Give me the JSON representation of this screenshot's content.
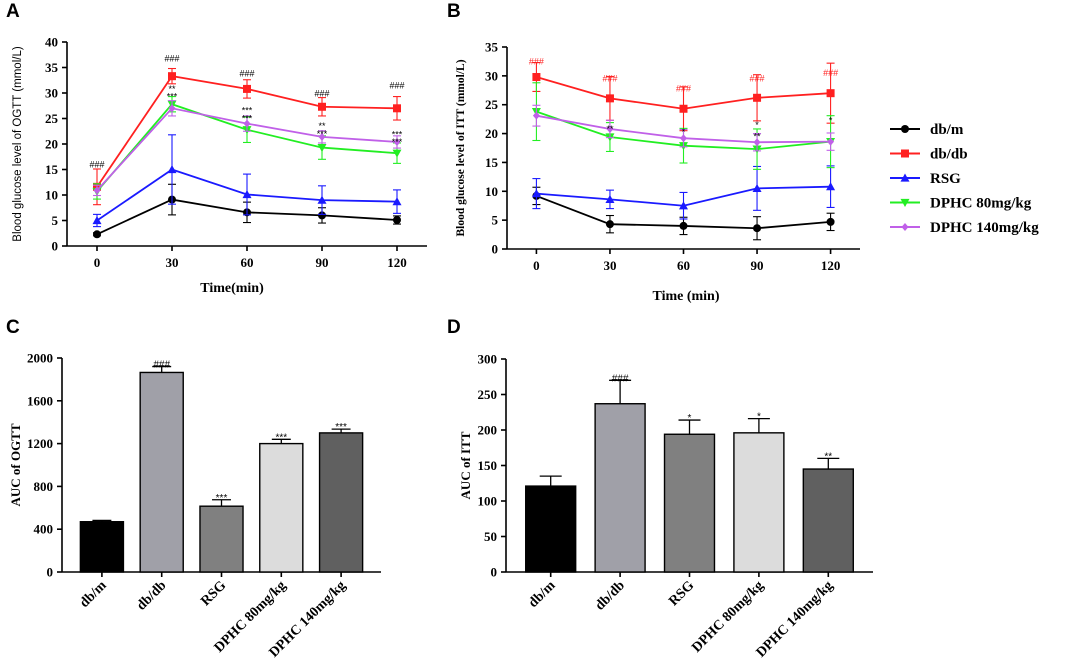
{
  "legend": [
    {
      "label": "db/m",
      "color": "#000000",
      "marker": "circle"
    },
    {
      "label": "db/db",
      "color": "#ff2020",
      "marker": "square"
    },
    {
      "label": "RSG",
      "color": "#1a1aff",
      "marker": "triangle-up"
    },
    {
      "label": "DPHC 80mg/kg",
      "color": "#22ee22",
      "marker": "triangle-down"
    },
    {
      "label": "DPHC 140mg/kg",
      "color": "#c060e8",
      "marker": "diamond"
    }
  ],
  "chart_data": [
    {
      "id": "A",
      "letter": "A",
      "type": "line",
      "xlabel": "Time(min)",
      "ylabel": "Blood glucose level of OGTT (mmol/L)",
      "x": [
        0,
        30,
        60,
        90,
        120
      ],
      "xlim": [
        -12,
        132
      ],
      "ylim": [
        0,
        40
      ],
      "yticks": [
        0,
        5,
        10,
        15,
        20,
        25,
        30,
        35,
        40
      ],
      "series": [
        {
          "name": "db/m",
          "values": [
            2.3,
            9.1,
            6.6,
            6.0,
            5.1
          ],
          "err": [
            0.3,
            3.0,
            2.0,
            1.5,
            0.8
          ]
        },
        {
          "name": "db/db",
          "values": [
            11.6,
            33.3,
            30.8,
            27.3,
            27.0
          ],
          "err": [
            3.5,
            1.5,
            1.8,
            1.8,
            2.3
          ]
        },
        {
          "name": "RSG",
          "values": [
            5.0,
            15.0,
            10.1,
            9.0,
            8.7
          ],
          "err": [
            1.2,
            6.8,
            4.0,
            2.8,
            2.3
          ]
        },
        {
          "name": "DPHC 80mg/kg",
          "values": [
            10.7,
            27.8,
            22.8,
            19.3,
            18.2
          ],
          "err": [
            1.5,
            1.5,
            2.5,
            2.3,
            2.0
          ]
        },
        {
          "name": "DPHC 140mg/kg",
          "values": [
            10.9,
            27.0,
            24.0,
            21.4,
            20.4
          ],
          "err": [
            1.0,
            1.5,
            1.5,
            1.2,
            1.2
          ]
        }
      ],
      "annotations": [
        {
          "x": 0,
          "y": 16.0,
          "text": "###",
          "color": "#000000"
        },
        {
          "x": 30,
          "y": 36.8,
          "text": "###",
          "color": "#000000"
        },
        {
          "x": 30,
          "y": 30.8,
          "text": "**",
          "color": "#000000"
        },
        {
          "x": 30,
          "y": 29.3,
          "text": "***",
          "color": "#000000"
        },
        {
          "x": 60,
          "y": 33.8,
          "text": "###",
          "color": "#000000"
        },
        {
          "x": 60,
          "y": 26.6,
          "text": "***",
          "color": "#000000"
        },
        {
          "x": 60,
          "y": 25.0,
          "text": "***",
          "color": "#000000"
        },
        {
          "x": 90,
          "y": 29.9,
          "text": "###",
          "color": "#000000"
        },
        {
          "x": 90,
          "y": 23.5,
          "text": "**",
          "color": "#000000"
        },
        {
          "x": 90,
          "y": 22.0,
          "text": "***",
          "color": "#000000"
        },
        {
          "x": 120,
          "y": 31.5,
          "text": "###",
          "color": "#000000"
        },
        {
          "x": 120,
          "y": 21.9,
          "text": "***",
          "color": "#000000"
        },
        {
          "x": 120,
          "y": 20.4,
          "text": "***",
          "color": "#000000"
        }
      ]
    },
    {
      "id": "B",
      "letter": "B",
      "type": "line",
      "xlabel": "Time (min)",
      "ylabel": "Blood glucose level of ITT (mmol/L)",
      "x": [
        0,
        30,
        60,
        90,
        120
      ],
      "xlim": [
        -12,
        132
      ],
      "ylim": [
        0,
        35
      ],
      "yticks": [
        0,
        5,
        10,
        15,
        20,
        25,
        30,
        35
      ],
      "series": [
        {
          "name": "db/m",
          "values": [
            9.2,
            4.3,
            4.0,
            3.6,
            4.7
          ],
          "err": [
            1.5,
            1.5,
            1.5,
            2.0,
            1.5
          ]
        },
        {
          "name": "db/db",
          "values": [
            29.8,
            26.1,
            24.3,
            26.2,
            27.0
          ],
          "err": [
            2.5,
            3.8,
            3.8,
            4.0,
            5.2
          ]
        },
        {
          "name": "RSG",
          "values": [
            9.6,
            8.6,
            7.5,
            10.5,
            10.8
          ],
          "err": [
            2.6,
            1.6,
            2.3,
            3.8,
            3.6
          ]
        },
        {
          "name": "DPHC 80mg/kg",
          "values": [
            23.8,
            19.4,
            17.9,
            17.3,
            18.6
          ],
          "err": [
            5.0,
            2.5,
            3.0,
            3.5,
            4.5
          ]
        },
        {
          "name": "DPHC 140mg/kg",
          "values": [
            23.1,
            20.8,
            19.2,
            18.5,
            18.6
          ],
          "err": [
            1.8,
            1.5,
            1.5,
            1.5,
            1.5
          ]
        }
      ],
      "annotations": [
        {
          "x": 0,
          "y": 32.5,
          "text": "###",
          "color": "#ff2020"
        },
        {
          "x": 30,
          "y": 29.5,
          "text": "###",
          "color": "#ff2020"
        },
        {
          "x": 60,
          "y": 27.8,
          "text": "###",
          "color": "#ff2020"
        },
        {
          "x": 90,
          "y": 29.5,
          "text": "###",
          "color": "#ff2020"
        },
        {
          "x": 120,
          "y": 30.5,
          "text": "###",
          "color": "#ff2020"
        },
        {
          "x": 30,
          "y": 20.8,
          "text": "**",
          "color": "#000000"
        },
        {
          "x": 60,
          "y": 20.3,
          "text": "*",
          "color": "#000000"
        },
        {
          "x": 90,
          "y": 21.5,
          "text": "*",
          "color": "#000000"
        },
        {
          "x": 90,
          "y": 19.5,
          "text": "**",
          "color": "#000000"
        },
        {
          "x": 120,
          "y": 22.3,
          "text": "*",
          "color": "#000000"
        }
      ]
    },
    {
      "id": "C",
      "letter": "C",
      "type": "bar",
      "xlabel": "",
      "ylabel": "AUC of OGTT",
      "categories": [
        "db/m",
        "db/db",
        "RSG",
        "DPHC 80mg/kg",
        "DPHC 140mg/kg"
      ],
      "values": [
        470,
        1865,
        615,
        1200,
        1300
      ],
      "err": [
        12,
        55,
        60,
        40,
        35
      ],
      "colors": [
        "#000000",
        "#a0a0a8",
        "#808080",
        "#dcdcdc",
        "#606060"
      ],
      "sig": [
        "",
        "###",
        "***",
        "***",
        "***"
      ],
      "ylim": [
        0,
        2000
      ],
      "yticks": [
        0,
        400,
        800,
        1200,
        1600,
        2000
      ]
    },
    {
      "id": "D",
      "letter": "D",
      "type": "bar",
      "xlabel": "",
      "ylabel": "AUC of ITT",
      "categories": [
        "db/m",
        "db/db",
        "RSG",
        "DPHC 80mg/kg",
        "DPHC 140mg/kg"
      ],
      "values": [
        121,
        237,
        194,
        196,
        145
      ],
      "err": [
        14,
        33,
        20,
        20,
        15
      ],
      "colors": [
        "#000000",
        "#a0a0a8",
        "#808080",
        "#dcdcdc",
        "#606060"
      ],
      "sig": [
        "",
        "###",
        "*",
        "*",
        "**"
      ],
      "ylim": [
        0,
        300
      ],
      "yticks": [
        0,
        50,
        100,
        150,
        200,
        250,
        300
      ]
    }
  ]
}
